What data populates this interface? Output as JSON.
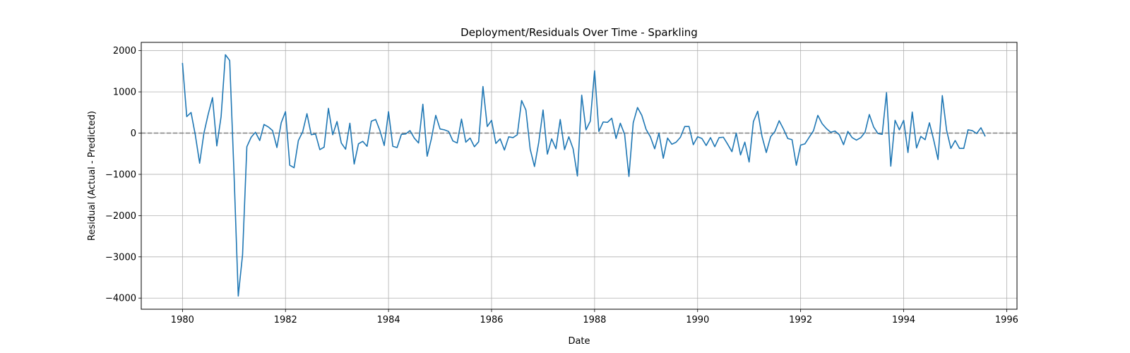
{
  "chart_data": {
    "type": "line",
    "title": "Deployment/Residuals Over Time - Sparkling",
    "xlabel": "Date",
    "ylabel": "Residual (Actual - Predicted)",
    "xlim": [
      1979.2,
      1996.2
    ],
    "ylim": [
      -4270,
      2200
    ],
    "xticks": [
      1980,
      1982,
      1984,
      1986,
      1988,
      1990,
      1992,
      1994,
      1996
    ],
    "xtick_labels": [
      "1980",
      "1982",
      "1984",
      "1986",
      "1988",
      "1990",
      "1992",
      "1994",
      "1996"
    ],
    "yticks": [
      2000,
      1000,
      0,
      -1000,
      -2000,
      -3000,
      -4000
    ],
    "ytick_labels": [
      "2000",
      "1000",
      "0",
      "−1000",
      "−2000",
      "−3000",
      "−4000"
    ],
    "grid": true,
    "reference_line": {
      "y": 0,
      "style": "dashed",
      "color": "#808080"
    },
    "series": [
      {
        "color": "#1f77b4",
        "x_start": "1980-01",
        "x_step": "1 month",
        "values": [
          1700,
          400,
          500,
          -50,
          -730,
          0,
          460,
          860,
          -310,
          400,
          1900,
          1760,
          -950,
          -3950,
          -2950,
          -330,
          -100,
          20,
          -180,
          210,
          150,
          60,
          -350,
          250,
          520,
          -780,
          -840,
          -180,
          30,
          470,
          -40,
          -20,
          -400,
          -340,
          600,
          -40,
          280,
          -240,
          -390,
          240,
          -750,
          -260,
          -200,
          -320,
          290,
          330,
          60,
          -300,
          520,
          -320,
          -350,
          -30,
          -20,
          60,
          -120,
          -240,
          700,
          -560,
          -130,
          430,
          100,
          80,
          40,
          -190,
          -240,
          340,
          -220,
          -120,
          -330,
          -210,
          1130,
          160,
          310,
          -250,
          -140,
          -410,
          -90,
          -110,
          -40,
          790,
          560,
          -390,
          -810,
          -220,
          560,
          -510,
          -140,
          -380,
          330,
          -400,
          -90,
          -380,
          -1040,
          920,
          80,
          290,
          1510,
          40,
          270,
          260,
          360,
          -130,
          240,
          -30,
          -1050,
          250,
          620,
          430,
          90,
          -90,
          -380,
          0,
          -610,
          -120,
          -270,
          -220,
          -100,
          160,
          160,
          -280,
          -90,
          -130,
          -300,
          -110,
          -330,
          -110,
          -100,
          -270,
          -450,
          0,
          -530,
          -220,
          -700,
          280,
          530,
          -80,
          -470,
          -90,
          40,
          300,
          100,
          -130,
          -160,
          -780,
          -290,
          -260,
          -100,
          60,
          430,
          230,
          110,
          20,
          50,
          -40,
          -280,
          40,
          -110,
          -170,
          -110,
          20,
          450,
          150,
          -10,
          -30,
          980,
          -800,
          310,
          80,
          310,
          -470,
          510,
          -360,
          -80,
          -160,
          250,
          -170,
          -640,
          910,
          70,
          -370,
          -180,
          -370,
          -370,
          80,
          60,
          -10,
          130,
          -80
        ]
      }
    ]
  }
}
